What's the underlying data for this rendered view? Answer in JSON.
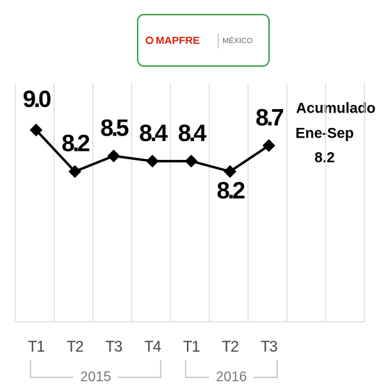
{
  "logo": {
    "brand": "MAPFRE",
    "region": "MÉXICO"
  },
  "chart_data": {
    "type": "line",
    "categories": [
      "T1",
      "T2",
      "T3",
      "T4",
      "T1",
      "T2",
      "T3"
    ],
    "x_groups": [
      {
        "label": "2015",
        "span": 4
      },
      {
        "label": "2016",
        "span": 3
      }
    ],
    "values": [
      9.0,
      8.2,
      8.5,
      8.4,
      8.4,
      8.2,
      8.7
    ],
    "value_labels": [
      "9.0",
      "8.2",
      "8.5",
      "8.4",
      "8.4",
      "8.2",
      "8.7"
    ],
    "color": "#000000",
    "ylim": [
      5.3,
      9.9
    ],
    "annotation": {
      "title": "Acumulado",
      "period": "Ene-Sep",
      "value_label": "8.2"
    }
  }
}
